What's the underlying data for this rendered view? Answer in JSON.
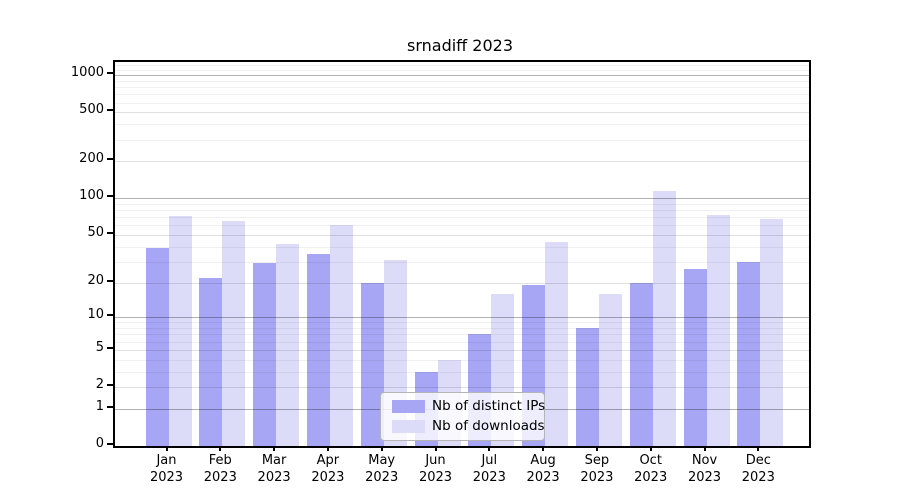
{
  "title": "srnadiff 2023",
  "colors": {
    "ips": "#a6a6f4",
    "downloads": "#dcdcf9",
    "frame": "#000000",
    "grid_major": "rgba(0,0,0,0.30)",
    "grid_light": "rgba(0,0,0,0.12)",
    "grid_minor": "rgba(0,0,0,0.06)",
    "background": "#ffffff"
  },
  "legend": {
    "items": [
      {
        "label": "Nb of distinct IPs",
        "color_key": "ips"
      },
      {
        "label": "Nb of downloads",
        "color_key": "downloads"
      }
    ]
  },
  "chart_data": {
    "type": "bar",
    "title": "srnadiff 2023",
    "categories": [
      "Jan 2023",
      "Feb 2023",
      "Mar 2023",
      "Apr 2023",
      "May 2023",
      "Jun 2023",
      "Jul 2023",
      "Aug 2023",
      "Sep 2023",
      "Oct 2023",
      "Nov 2023",
      "Dec 2023"
    ],
    "series": [
      {
        "name": "Nb of distinct IPs",
        "color_key": "ips",
        "values": [
          39,
          22,
          29,
          35,
          20,
          3,
          7,
          19,
          8,
          20,
          26,
          30
        ]
      },
      {
        "name": "Nb of downloads",
        "color_key": "downloads",
        "values": [
          72,
          65,
          42,
          60,
          31,
          4,
          16,
          44,
          16,
          114,
          73,
          68
        ]
      }
    ],
    "xlabel": "",
    "ylabel": "",
    "y_scale": "log1p",
    "ylim": [
      0,
      1280
    ],
    "y_ticks": [
      0,
      1,
      2,
      5,
      10,
      20,
      50,
      100,
      200,
      500,
      1000
    ],
    "y_grid_major": [
      1,
      10,
      100,
      1000
    ],
    "y_grid_light": [
      2,
      5,
      20,
      50,
      200,
      500
    ],
    "y_grid_minor": [
      3,
      4,
      6,
      7,
      8,
      9,
      30,
      40,
      60,
      70,
      80,
      90,
      300,
      400,
      600,
      700,
      800,
      900,
      1100,
      1200
    ],
    "grid": true,
    "legend_position": "bottom-center-inside"
  }
}
